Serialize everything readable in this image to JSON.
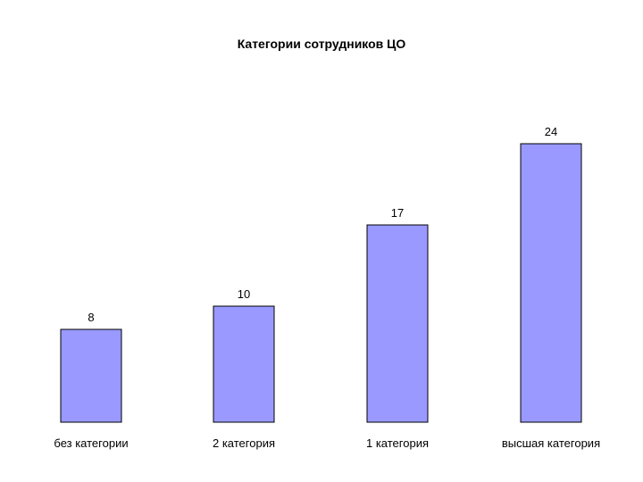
{
  "chart_data": {
    "type": "bar",
    "title": "Категории сотрудников ЦО",
    "xlabel": "",
    "ylabel": "",
    "categories": [
      "без категории",
      "2 категория",
      "1 категория",
      "высшая категория"
    ],
    "values": [
      8,
      10,
      17,
      24
    ],
    "ylim": [
      0,
      24
    ],
    "grid": false,
    "legend": "none",
    "colors": {
      "bar_fill": "#9999ff",
      "bar_stroke": "#000000",
      "background": "#ffffff",
      "text": "#000000"
    }
  }
}
